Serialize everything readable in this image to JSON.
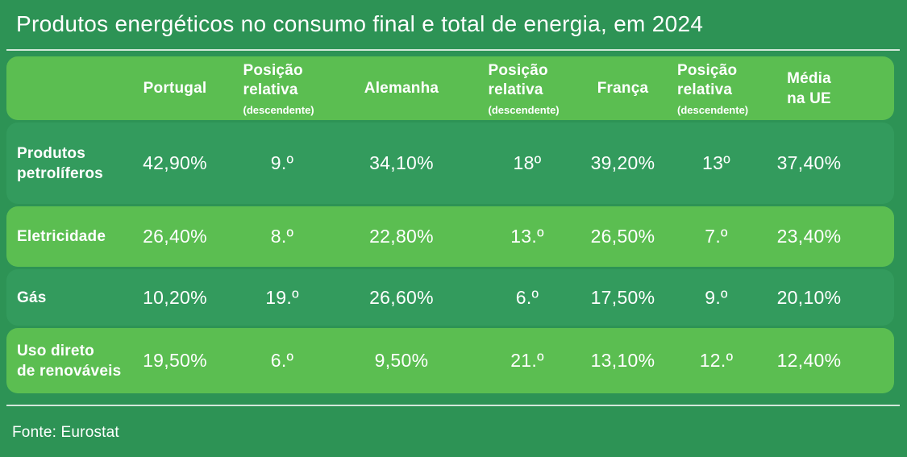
{
  "title": "Produtos energéticos no consumo final e total de energia, em 2024",
  "source": "Fonte: Eurostat",
  "colors": {
    "background": "#2D9355",
    "row_dark": "#339B5D",
    "row_light": "#5BBE51",
    "header_bg": "#5BBE51",
    "text": "#FFFFFF",
    "divider": "#D2E7DA"
  },
  "table": {
    "header": {
      "country1": "Portugal",
      "pos_label": "Posição relativa",
      "pos_sub": "(descendente)",
      "country2": "Alemanha",
      "country3": "França",
      "average": "Média na UE"
    },
    "rows": [
      {
        "label": "Produtos\npetrolíferos",
        "v1": "42,90%",
        "p1": "9.º",
        "v2": "34,10%",
        "p2": "18º",
        "v3": "39,20%",
        "p3": "13º",
        "avg": "37,40%"
      },
      {
        "label": "Eletricidade",
        "v1": "26,40%",
        "p1": "8.º",
        "v2": "22,80%",
        "p2": "13.º",
        "v3": "26,50%",
        "p3": "7.º",
        "avg": "23,40%"
      },
      {
        "label": "Gás",
        "v1": "10,20%",
        "p1": "19.º",
        "v2": "26,60%",
        "p2": "6.º",
        "v3": "17,50%",
        "p3": "9.º",
        "avg": "20,10%"
      },
      {
        "label": "Uso direto\nde renováveis",
        "v1": "19,50%",
        "p1": "6.º",
        "v2": "9,50%",
        "p2": "21.º",
        "v3": "13,10%",
        "p3": "12.º",
        "avg": "12,40%"
      }
    ]
  },
  "chart_data": {
    "type": "table",
    "title": "Produtos energéticos no consumo final e total de energia, em 2024",
    "source": "Fonte: Eurostat",
    "columns": [
      "",
      "Portugal",
      "Posição relativa (descendente)",
      "Alemanha",
      "Posição relativa (descendente)",
      "França",
      "Posição relativa (descendente)",
      "Média na UE"
    ],
    "rows": [
      [
        "Produtos petrolíferos",
        "42,90%",
        "9.º",
        "34,10%",
        "18º",
        "39,20%",
        "13º",
        "37,40%"
      ],
      [
        "Eletricidade",
        "26,40%",
        "8.º",
        "22,80%",
        "13.º",
        "26,50%",
        "7.º",
        "23,40%"
      ],
      [
        "Gás",
        "10,20%",
        "19.º",
        "26,60%",
        "6.º",
        "17,50%",
        "9.º",
        "20,10%"
      ],
      [
        "Uso direto de renováveis",
        "19,50%",
        "6.º",
        "9,50%",
        "21.º",
        "13,10%",
        "12.º",
        "12,40%"
      ]
    ]
  }
}
